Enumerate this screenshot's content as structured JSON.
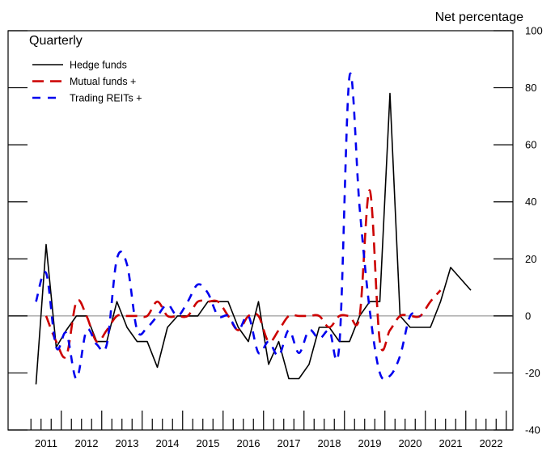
{
  "chart_data": {
    "type": "line",
    "title": "Quarterly",
    "right_axis_label": "Net percentage",
    "ylim": [
      -40,
      100
    ],
    "yticks": [
      -40,
      -20,
      0,
      20,
      40,
      60,
      80,
      100
    ],
    "xlim": [
      2011,
      2023
    ],
    "x_labels": [
      "2011",
      "2012",
      "2013",
      "2014",
      "2015",
      "2016",
      "2017",
      "2018",
      "2019",
      "2020",
      "2021",
      "2022"
    ],
    "zero_line": true,
    "legend_position": "top-left",
    "series": [
      {
        "name": "Hedge funds",
        "color": "#000000",
        "style": "solid",
        "x": [
          2011.25,
          2011.5,
          2011.75,
          2012.0,
          2012.25,
          2012.5,
          2012.75,
          2013.0,
          2013.25,
          2013.5,
          2013.75,
          2014.0,
          2014.25,
          2014.5,
          2014.75,
          2015.0,
          2015.25,
          2015.5,
          2015.75,
          2016.0,
          2016.25,
          2016.5,
          2016.75,
          2017.0,
          2017.25,
          2017.5,
          2017.75,
          2018.0,
          2018.25,
          2018.5,
          2018.75,
          2019.0,
          2019.25,
          2019.5,
          2019.75,
          2020.0,
          2020.25,
          2020.5,
          2020.75,
          2021.0,
          2021.25,
          2021.5,
          2021.75,
          2022.0,
          2022.25,
          2022.5,
          2022.75
        ],
        "values": [
          -24,
          25,
          -11,
          -5,
          0,
          0,
          -9,
          -9,
          5,
          -4,
          -9,
          -9,
          -18,
          -4,
          0,
          0,
          0,
          5,
          5,
          5,
          -4,
          -9,
          5,
          -17,
          -9,
          -22,
          -22,
          -17,
          -4,
          -4,
          -9,
          -9,
          0,
          5,
          5,
          78,
          0,
          -4,
          -4,
          -4,
          5,
          17,
          13,
          9,
          null,
          null,
          null
        ]
      },
      {
        "name": "Mutual funds +",
        "color": "#cc0000",
        "style": "longdash",
        "x": [
          2011.5,
          2011.75,
          2012.0,
          2012.25,
          2012.5,
          2012.75,
          2013.0,
          2013.25,
          2013.5,
          2013.75,
          2014.0,
          2014.25,
          2014.5,
          2014.75,
          2015.0,
          2015.25,
          2015.5,
          2015.75,
          2016.0,
          2016.25,
          2016.5,
          2016.75,
          2017.0,
          2017.25,
          2017.5,
          2017.75,
          2018.0,
          2018.25,
          2018.5,
          2018.75,
          2019.0,
          2019.25,
          2019.5,
          2019.75,
          2020.0,
          2020.25,
          2020.5,
          2020.75,
          2021.0,
          2021.25,
          2021.5,
          2021.75
        ],
        "values": [
          0,
          -9,
          -14,
          5,
          0,
          -9,
          -5,
          0,
          0,
          0,
          0,
          5,
          0,
          0,
          0,
          5,
          5,
          5,
          0,
          -5,
          0,
          0,
          -9,
          -5,
          0,
          0,
          0,
          0,
          -4,
          0,
          0,
          0,
          44,
          -9,
          -5,
          0,
          0,
          0,
          5,
          9,
          null,
          null
        ]
      },
      {
        "name": "Trading REITs +",
        "color": "#0000ee",
        "style": "dash",
        "x": [
          2011.25,
          2011.5,
          2011.75,
          2012.0,
          2012.25,
          2012.5,
          2012.75,
          2013.0,
          2013.25,
          2013.5,
          2013.75,
          2014.0,
          2014.25,
          2014.5,
          2014.75,
          2015.0,
          2015.25,
          2015.5,
          2015.75,
          2016.0,
          2016.25,
          2016.5,
          2016.75,
          2017.0,
          2017.25,
          2017.5,
          2017.75,
          2018.0,
          2018.25,
          2018.5,
          2018.75,
          2019.0,
          2019.25,
          2019.5,
          2019.75,
          2020.0,
          2020.25,
          2020.5,
          2020.75,
          2021.0,
          2021.25,
          2021.5,
          2021.75
        ],
        "values": [
          5,
          15,
          -11,
          -6,
          -22,
          -5,
          -10,
          -10,
          20,
          18,
          -5,
          -4,
          0,
          4,
          0,
          5,
          11,
          8,
          0,
          0,
          -5,
          0,
          -13,
          -9,
          -14,
          -5,
          -13,
          -5,
          -8,
          -5,
          -10,
          84,
          38,
          2,
          -20,
          -21,
          -14,
          0,
          0,
          null,
          null,
          null,
          null
        ]
      }
    ]
  }
}
